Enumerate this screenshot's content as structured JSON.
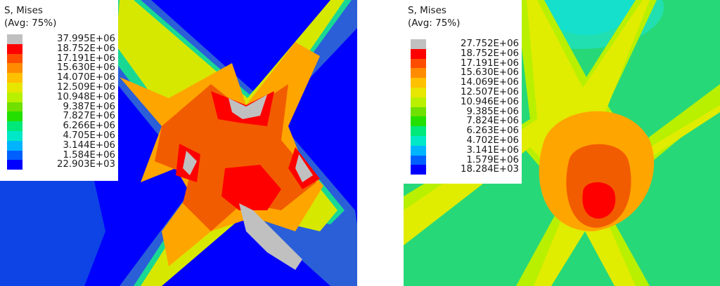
{
  "figures": [
    {
      "id": "left",
      "legend": {
        "title_line1": "S, Mises",
        "title_line2": "(Avg: 75%)",
        "labels": [
          "37.995E+06",
          "18.752E+06",
          "17.191E+06",
          "15.630E+06",
          "14.070E+06",
          "12.509E+06",
          "10.948E+06",
          "9.387E+06",
          "7.827E+06",
          "6.266E+06",
          "4.705E+06",
          "3.144E+06",
          "1.584E+06",
          "22.903E+03"
        ]
      }
    },
    {
      "id": "right",
      "legend": {
        "title_line1": "S, Mises",
        "title_line2": "(Avg: 75%)",
        "labels": [
          "27.752E+06",
          "18.752E+06",
          "17.191E+06",
          "15.630E+06",
          "14.069E+06",
          "12.507E+06",
          "10.946E+06",
          "9.385E+06",
          "7.824E+06",
          "6.263E+06",
          "4.702E+06",
          "3.141E+06",
          "1.579E+06",
          "18.284E+03"
        ]
      }
    }
  ],
  "colors": {
    "band_colors": [
      "#c0c0c0",
      "#ff0000",
      "#ff4d00",
      "#ff8c00",
      "#ffc000",
      "#e6e600",
      "#b8f000",
      "#6fe000",
      "#23e000",
      "#00e87a",
      "#00e8c8",
      "#00b4ff",
      "#0060ff",
      "#0000ff"
    ],
    "contour_red": "#ff0000",
    "contour_orange_red": "#f25c00",
    "contour_orange": "#ffa500",
    "contour_yellow": "#d7e800",
    "contour_green": "#2fd86a",
    "contour_blue": "#0000ff",
    "contour_dark_blue": "#0b3ec8"
  }
}
